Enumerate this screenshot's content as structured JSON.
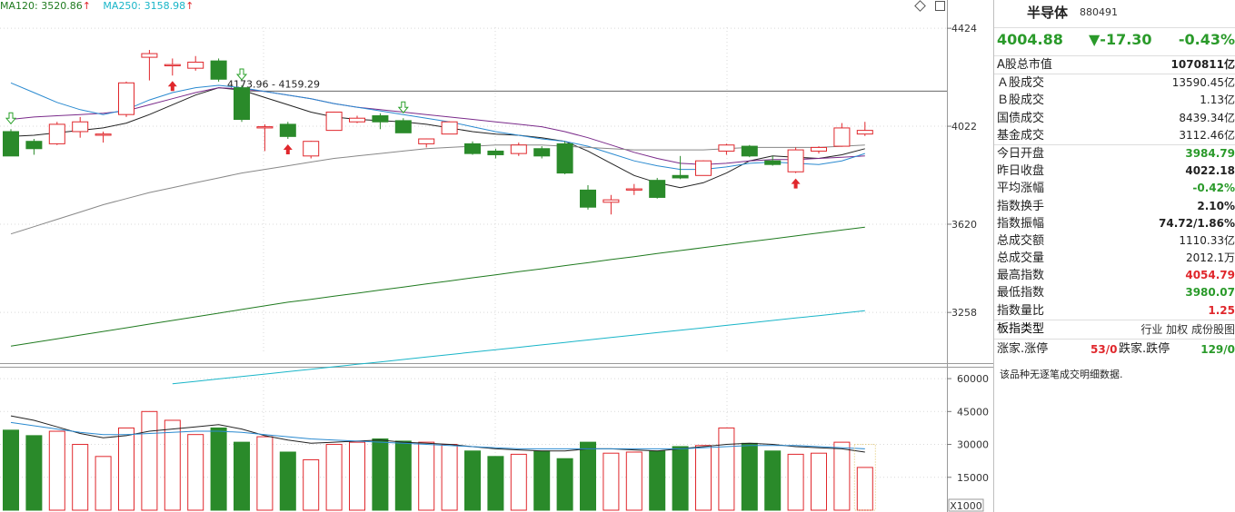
{
  "legend": {
    "ma120_label": "MA120: 3520.86",
    "ma250_label": "MA250: 3158.98",
    "up_mark": "↑",
    "ma120_color": "#1f7a1f",
    "ma250_color": "#19b5c8"
  },
  "toolbar": {
    "diamond_icon": "diamond-icon",
    "panel_icon": "panel-toggle-icon"
  },
  "colors": {
    "up": "#e0272c",
    "down": "#2a8a2a",
    "ma_main": "#222222",
    "ma_purple": "#7a2a8a",
    "ma_blue": "#2a8ad0",
    "ma_gray": "#888888",
    "ma120": "#1f7a1f",
    "ma250": "#19b5c8"
  },
  "chart_data": [
    {
      "type": "candlestick",
      "y_ticks": [
        "4424",
        "4022",
        "3620",
        "3258"
      ],
      "ylim": [
        3050,
        4540
      ],
      "annotation_range": "4173.96 - 4159.29",
      "annotation_level": 4166,
      "candles": [
        {
          "open": 4000,
          "close": 3900,
          "high": 4010,
          "low": 3900
        },
        {
          "open": 3960,
          "close": 3930,
          "high": 3970,
          "low": 3905
        },
        {
          "open": 3950,
          "close": 4030,
          "high": 4040,
          "low": 3945
        },
        {
          "open": 4000,
          "close": 4040,
          "high": 4060,
          "low": 3975
        },
        {
          "open": 3985,
          "close": 3990,
          "high": 4000,
          "low": 3955
        },
        {
          "open": 4070,
          "close": 4200,
          "high": 4205,
          "low": 4060
        },
        {
          "open": 4305,
          "close": 4320,
          "high": 4335,
          "low": 4210
        },
        {
          "open": 4270,
          "close": 4275,
          "high": 4300,
          "low": 4230
        },
        {
          "open": 4260,
          "close": 4285,
          "high": 4310,
          "low": 4250
        },
        {
          "open": 4290,
          "close": 4215,
          "high": 4300,
          "low": 4205
        },
        {
          "open": 4180,
          "close": 4050,
          "high": 4190,
          "low": 4040
        },
        {
          "open": 4015,
          "close": 4020,
          "high": 4030,
          "low": 3920
        },
        {
          "open": 4030,
          "close": 3980,
          "high": 4040,
          "low": 3970
        },
        {
          "open": 3900,
          "close": 3960,
          "high": 3962,
          "low": 3890
        },
        {
          "open": 4005,
          "close": 4080,
          "high": 4082,
          "low": 4005
        },
        {
          "open": 4040,
          "close": 4055,
          "high": 4065,
          "low": 4035
        },
        {
          "open": 4065,
          "close": 4040,
          "high": 4075,
          "low": 4010
        },
        {
          "open": 4045,
          "close": 3995,
          "high": 4055,
          "low": 3995
        },
        {
          "open": 3950,
          "close": 3970,
          "high": 3972,
          "low": 3935
        },
        {
          "open": 3990,
          "close": 4040,
          "high": 4042,
          "low": 3990
        },
        {
          "open": 3950,
          "close": 3910,
          "high": 3960,
          "low": 3905
        },
        {
          "open": 3920,
          "close": 3905,
          "high": 3930,
          "low": 3890
        },
        {
          "open": 3910,
          "close": 3945,
          "high": 3955,
          "low": 3900
        },
        {
          "open": 3930,
          "close": 3900,
          "high": 3940,
          "low": 3890
        },
        {
          "open": 3950,
          "close": 3830,
          "high": 3960,
          "low": 3825
        },
        {
          "open": 3760,
          "close": 3690,
          "high": 3780,
          "low": 3680
        },
        {
          "open": 3710,
          "close": 3720,
          "high": 3740,
          "low": 3660
        },
        {
          "open": 3760,
          "close": 3765,
          "high": 3785,
          "low": 3740
        },
        {
          "open": 3800,
          "close": 3730,
          "high": 3810,
          "low": 3725
        },
        {
          "open": 3820,
          "close": 3810,
          "high": 3900,
          "low": 3805
        },
        {
          "open": 3820,
          "close": 3880,
          "high": 3882,
          "low": 3820
        },
        {
          "open": 3920,
          "close": 3945,
          "high": 3950,
          "low": 3905
        },
        {
          "open": 3940,
          "close": 3900,
          "high": 3945,
          "low": 3895
        },
        {
          "open": 3880,
          "close": 3865,
          "high": 3900,
          "low": 3860
        },
        {
          "open": 3835,
          "close": 3925,
          "high": 3935,
          "low": 3830
        },
        {
          "open": 3920,
          "close": 3935,
          "high": 3940,
          "low": 3910
        },
        {
          "open": 3940,
          "close": 4015,
          "high": 4035,
          "low": 3938
        },
        {
          "open": 3990,
          "close": 4005,
          "high": 4040,
          "low": 3982
        }
      ],
      "moving_averages": [
        {
          "color": "#222222",
          "values": [
            3980,
            3985,
            3995,
            4005,
            4015,
            4035,
            4070,
            4110,
            4150,
            4180,
            4170,
            4140,
            4110,
            4080,
            4060,
            4050,
            4045,
            4040,
            4030,
            4015,
            4000,
            3990,
            3985,
            3975,
            3960,
            3920,
            3870,
            3820,
            3790,
            3770,
            3790,
            3830,
            3880,
            3900,
            3895,
            3890,
            3905,
            3930
          ]
        },
        {
          "color": "#7a2a8a",
          "values": [
            4050,
            4060,
            4065,
            4070,
            4075,
            4085,
            4110,
            4135,
            4160,
            4180,
            4175,
            4165,
            4150,
            4135,
            4115,
            4100,
            4090,
            4080,
            4070,
            4060,
            4050,
            4040,
            4030,
            4020,
            4000,
            3975,
            3945,
            3915,
            3890,
            3870,
            3865,
            3870,
            3880,
            3885,
            3885,
            3890,
            3895,
            3900
          ]
        },
        {
          "color": "#2a8ad0",
          "values": [
            4200,
            4160,
            4120,
            4090,
            4070,
            4090,
            4130,
            4160,
            4180,
            4190,
            4180,
            4165,
            4150,
            4135,
            4115,
            4100,
            4085,
            4070,
            4055,
            4040,
            4020,
            4000,
            3985,
            3970,
            3960,
            3940,
            3910,
            3880,
            3860,
            3845,
            3845,
            3855,
            3870,
            3875,
            3870,
            3865,
            3880,
            3910
          ]
        },
        {
          "color": "#888888",
          "values": [
            3580,
            3610,
            3640,
            3670,
            3700,
            3725,
            3750,
            3770,
            3790,
            3810,
            3830,
            3845,
            3860,
            3875,
            3890,
            3900,
            3910,
            3920,
            3930,
            3935,
            3940,
            3945,
            3945,
            3945,
            3940,
            3935,
            3930,
            3925,
            3925,
            3925,
            3925,
            3930,
            3935,
            3935,
            3935,
            3935,
            3940,
            3945
          ]
        },
        {
          "color": "#1f7a1f",
          "values": [
            3120,
            3135,
            3150,
            3165,
            3180,
            3195,
            3210,
            3225,
            3240,
            3255,
            3270,
            3285,
            3300,
            3312,
            3325,
            3337,
            3350,
            3362,
            3375,
            3387,
            3400,
            3412,
            3425,
            3437,
            3450,
            3462,
            3475,
            3487,
            3500,
            3512,
            3524,
            3536,
            3548,
            3560,
            3572,
            3584,
            3596,
            3608
          ]
        },
        {
          "color": "#19b5c8",
          "values": [
            null,
            null,
            null,
            null,
            null,
            null,
            null,
            2965,
            2975,
            2985,
            2995,
            3005,
            3015,
            3025,
            3035,
            3045,
            3055,
            3065,
            3075,
            3085,
            3095,
            3105,
            3115,
            3125,
            3135,
            3145,
            3155,
            3165,
            3175,
            3185,
            3195,
            3205,
            3215,
            3225,
            3235,
            3245,
            3255,
            3265
          ]
        }
      ],
      "markers": [
        {
          "index": 0,
          "type": "green-outline-down-arrow"
        },
        {
          "index": 7,
          "type": "red-up-arrow"
        },
        {
          "index": 10,
          "type": "green-outline-down-arrow"
        },
        {
          "index": 12,
          "type": "red-up-arrow"
        },
        {
          "index": 17,
          "type": "green-outline-down-arrow"
        },
        {
          "index": 34,
          "type": "red-up-arrow"
        }
      ]
    },
    {
      "type": "bar",
      "y_ticks": [
        "60000",
        "45000",
        "30000",
        15000
      ],
      "unit_label": "X1000",
      "ylim": [
        0,
        65000
      ],
      "volumes": [
        36500,
        34000,
        36000,
        30000,
        24500,
        37500,
        45000,
        41000,
        34500,
        37500,
        31000,
        33500,
        26500,
        23000,
        30000,
        31000,
        32500,
        31500,
        31000,
        30000,
        27000,
        24500,
        25500,
        27000,
        23500,
        31000,
        26000,
        26500,
        27000,
        29000,
        29500,
        37500,
        30500,
        27000,
        25500,
        26000,
        31000,
        19500
      ],
      "volume_ma": [
        {
          "color": "#222222",
          "values": [
            43000,
            41000,
            38000,
            35000,
            33000,
            34000,
            36000,
            37000,
            38000,
            39000,
            37000,
            34000,
            32000,
            30500,
            31000,
            31500,
            32000,
            31000,
            30500,
            30000,
            29000,
            28000,
            27500,
            27000,
            27000,
            28000,
            28000,
            27500,
            27000,
            28000,
            29000,
            30000,
            30500,
            30000,
            29000,
            28500,
            28000,
            26500
          ]
        },
        {
          "color": "#2a8ad0",
          "values": [
            40000,
            38500,
            37000,
            35500,
            34500,
            34500,
            35000,
            35500,
            36000,
            36000,
            35500,
            34500,
            33500,
            32500,
            32000,
            31500,
            31000,
            30500,
            30000,
            29500,
            29000,
            28500,
            28000,
            28000,
            28000,
            28000,
            28000,
            28000,
            28000,
            28000,
            28500,
            29000,
            29500,
            29500,
            29500,
            29000,
            28500,
            28000
          ]
        }
      ]
    }
  ],
  "panel": {
    "name": "半导体",
    "code": "880491",
    "price": "4004.88",
    "change": "▼-17.30",
    "change_pct": "-0.43%",
    "rows_a": [
      {
        "label": "A股总市值",
        "value": "1070811亿",
        "cls": "kb"
      }
    ],
    "rows_b": [
      {
        "label": "Ａ股成交",
        "value": "13590.45亿",
        "cls": "k"
      },
      {
        "label": "Ｂ股成交",
        "value": "1.13亿",
        "cls": "k"
      },
      {
        "label": "国债成交",
        "value": "8439.34亿",
        "cls": "k"
      },
      {
        "label": "基金成交",
        "value": "3112.46亿",
        "cls": "k"
      }
    ],
    "rows_c": [
      {
        "label": "今日开盘",
        "value": "3984.79",
        "cls": "g"
      },
      {
        "label": "昨日收盘",
        "value": "4022.18",
        "cls": "kb"
      },
      {
        "label": "平均涨幅",
        "value": "-0.42%",
        "cls": "g"
      },
      {
        "label": "指数换手",
        "value": "2.10%",
        "cls": "kb"
      },
      {
        "label": "指数振幅",
        "value": "74.72/1.86%",
        "cls": "kb"
      },
      {
        "label": "总成交额",
        "value": "1110.33亿",
        "cls": "k"
      },
      {
        "label": "总成交量",
        "value": "2012.1万",
        "cls": "k"
      },
      {
        "label": "最高指数",
        "value": "4054.79",
        "cls": "r"
      },
      {
        "label": "最低指数",
        "value": "3980.07",
        "cls": "g"
      },
      {
        "label": "指数量比",
        "value": "1.25",
        "cls": "r"
      }
    ],
    "type_label": "板指类型",
    "type_tags": "行业 加权 成份股图",
    "breadth_up_label": "涨家.涨停",
    "breadth_up_value": "53/0",
    "breadth_down_label": "跌家.跌停",
    "breadth_down_value": "129/0",
    "note": "该品种无逐笔成交明细数据."
  }
}
